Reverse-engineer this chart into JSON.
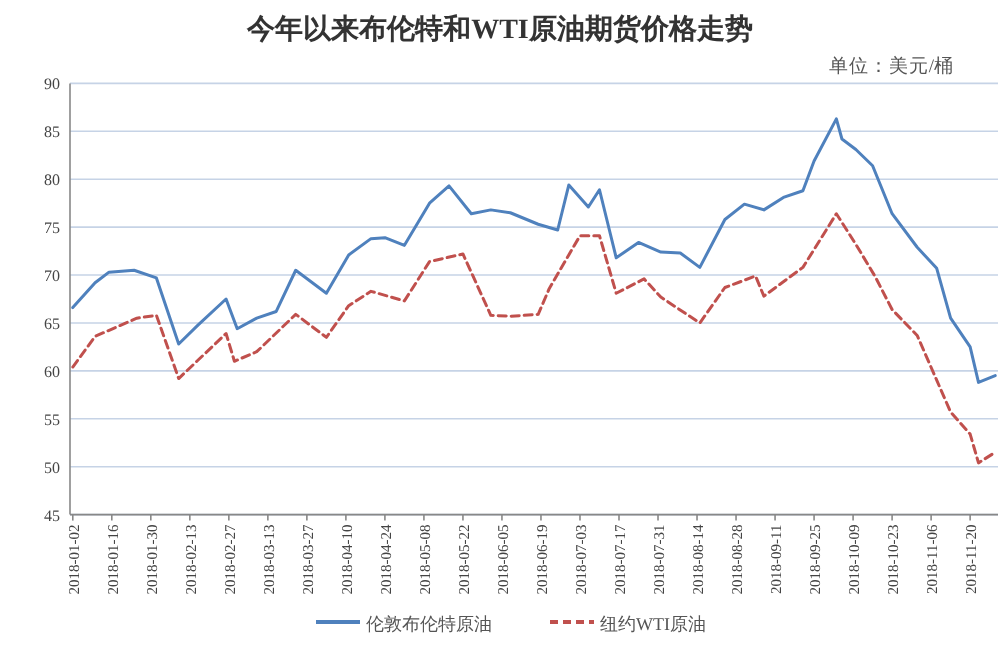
{
  "chart_data": {
    "type": "line",
    "title": "今年以来布伦特和WTI原油期货价格走势",
    "annotations": [
      "单位：美元/桶"
    ],
    "xlim": [
      "2018-01-01",
      "2018-11-30"
    ],
    "xticks": [
      {
        "value": "2018-01-02",
        "label": "2018-01-02"
      },
      {
        "value": "2018-01-16",
        "label": "2018-01-16"
      },
      {
        "value": "2018-01-30",
        "label": "2018-01-30"
      },
      {
        "value": "2018-02-13",
        "label": "2018-02-13"
      },
      {
        "value": "2018-02-27",
        "label": "2018-02-27"
      },
      {
        "value": "2018-03-13",
        "label": "2018-03-13"
      },
      {
        "value": "2018-03-27",
        "label": "2018-03-27"
      },
      {
        "value": "2018-04-10",
        "label": "2018-04-10"
      },
      {
        "value": "2018-04-24",
        "label": "2018-04-24"
      },
      {
        "value": "2018-05-08",
        "label": "2018-05-08"
      },
      {
        "value": "2018-05-22",
        "label": "2018-05-22"
      },
      {
        "value": "2018-06-05",
        "label": "2018-06-05"
      },
      {
        "value": "2018-06-19",
        "label": "2018-06-19"
      },
      {
        "value": "2018-07-03",
        "label": "2018-07-03"
      },
      {
        "value": "2018-07-17",
        "label": "2018-07-17"
      },
      {
        "value": "2018-07-31",
        "label": "2018-07-31"
      },
      {
        "value": "2018-08-14",
        "label": "2018-08-14"
      },
      {
        "value": "2018-08-28",
        "label": "2018-08-28"
      },
      {
        "value": "2018-09-11",
        "label": "2018-09-11"
      },
      {
        "value": "2018-09-25",
        "label": "2018-09-25"
      },
      {
        "value": "2018-10-09",
        "label": "2018-10-09"
      },
      {
        "value": "2018-10-23",
        "label": "2018-10-23"
      },
      {
        "value": "2018-11-06",
        "label": "2018-11-06"
      },
      {
        "value": "2018-11-20",
        "label": "2018-11-20"
      }
    ],
    "ylim": [
      45,
      90
    ],
    "yticks": [
      45,
      50,
      55,
      60,
      65,
      70,
      75,
      80,
      85,
      90
    ],
    "grid": "y",
    "legend": "bottom",
    "marker": "none",
    "series": [
      {
        "name": "伦敦布伦特原油",
        "color": "#4f81bd",
        "line_style": "solid",
        "x": [
          "2018-01-02",
          "2018-01-10",
          "2018-01-15",
          "2018-01-24",
          "2018-02-01",
          "2018-02-09",
          "2018-02-16",
          "2018-02-26",
          "2018-03-02",
          "2018-03-09",
          "2018-03-16",
          "2018-03-23",
          "2018-04-03",
          "2018-04-11",
          "2018-04-19",
          "2018-04-24",
          "2018-05-01",
          "2018-05-10",
          "2018-05-17",
          "2018-05-25",
          "2018-06-01",
          "2018-06-08",
          "2018-06-18",
          "2018-06-25",
          "2018-06-29",
          "2018-07-06",
          "2018-07-10",
          "2018-07-16",
          "2018-07-24",
          "2018-08-01",
          "2018-08-08",
          "2018-08-15",
          "2018-08-24",
          "2018-08-31",
          "2018-09-07",
          "2018-09-14",
          "2018-09-21",
          "2018-09-25",
          "2018-10-03",
          "2018-10-05",
          "2018-10-10",
          "2018-10-16",
          "2018-10-23",
          "2018-11-01",
          "2018-11-08",
          "2018-11-13",
          "2018-11-20",
          "2018-11-23",
          "2018-11-29"
        ],
        "values": [
          66.6,
          69.2,
          70.3,
          70.5,
          69.7,
          62.8,
          64.8,
          67.5,
          64.4,
          65.5,
          66.2,
          70.5,
          68.1,
          72.1,
          73.8,
          73.9,
          73.1,
          77.5,
          79.3,
          76.4,
          76.8,
          76.5,
          75.3,
          74.7,
          79.4,
          77.1,
          78.9,
          71.8,
          73.4,
          72.4,
          72.3,
          70.8,
          75.8,
          77.4,
          76.8,
          78.1,
          78.8,
          81.9,
          86.3,
          84.2,
          83.1,
          81.4,
          76.4,
          72.9,
          70.7,
          65.5,
          62.5,
          58.8,
          59.5
        ]
      },
      {
        "name": "纽约WTI原油",
        "color": "#c0504d",
        "line_style": "dashed",
        "x": [
          "2018-01-02",
          "2018-01-10",
          "2018-01-25",
          "2018-02-01",
          "2018-02-09",
          "2018-02-26",
          "2018-03-01",
          "2018-03-09",
          "2018-03-23",
          "2018-04-03",
          "2018-04-11",
          "2018-04-19",
          "2018-05-01",
          "2018-05-10",
          "2018-05-22",
          "2018-06-01",
          "2018-06-08",
          "2018-06-18",
          "2018-06-22",
          "2018-07-03",
          "2018-07-10",
          "2018-07-16",
          "2018-07-26",
          "2018-08-01",
          "2018-08-15",
          "2018-08-24",
          "2018-09-04",
          "2018-09-07",
          "2018-09-21",
          "2018-10-03",
          "2018-10-10",
          "2018-10-17",
          "2018-10-23",
          "2018-11-01",
          "2018-11-13",
          "2018-11-20",
          "2018-11-23",
          "2018-11-29"
        ],
        "values": [
          60.4,
          63.6,
          65.5,
          65.8,
          59.2,
          63.9,
          61.0,
          62.0,
          65.9,
          63.5,
          66.8,
          68.3,
          67.3,
          71.4,
          72.2,
          65.8,
          65.7,
          65.9,
          68.6,
          74.1,
          74.1,
          68.1,
          69.6,
          67.7,
          65.0,
          68.7,
          69.9,
          67.8,
          70.8,
          76.4,
          73.2,
          69.8,
          66.4,
          63.7,
          55.7,
          53.4,
          50.4,
          51.5
        ]
      }
    ]
  }
}
